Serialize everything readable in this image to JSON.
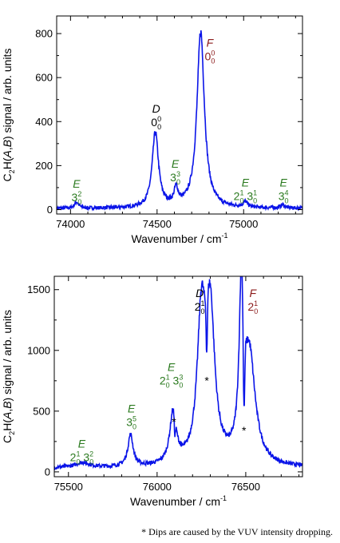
{
  "colors": {
    "trace": "#0a14e8",
    "E": "#2b7a1f",
    "D": "#000000",
    "F": "#8b1a1a"
  },
  "footnote": "* Dips are caused by the VUV intensity dropping.",
  "chart_data": [
    {
      "type": "line",
      "title": "",
      "xlabel_main": "Wavenumber / cm",
      "xlabel_sup": "-1",
      "ylabel_pre": "C",
      "ylabel_sub": "2",
      "ylabel_mid": "H(",
      "ylabel_A": "A",
      "ylabel_comma": ",",
      "ylabel_B": "B",
      "ylabel_post": ") signal / arb. units",
      "xlim": [
        73920,
        75340
      ],
      "ylim": [
        -20,
        880
      ],
      "xticks": [
        74000,
        74500,
        75000
      ],
      "yticks": [
        0,
        200,
        400,
        600,
        800
      ],
      "baseline": 5,
      "peaks": [
        {
          "x": 74035,
          "h": 28,
          "w": 14
        },
        {
          "x": 74490,
          "h": 340,
          "w": 22
        },
        {
          "x": 74610,
          "h": 75,
          "w": 14
        },
        {
          "x": 74752,
          "h": 800,
          "w": 26
        },
        {
          "x": 75010,
          "h": 25,
          "w": 16
        },
        {
          "x": 75225,
          "h": 15,
          "w": 14
        }
      ],
      "annotations": [
        {
          "x": 74035,
          "y": 100,
          "state": "E",
          "parts": [
            {
              "t": "3",
              "sup": "2",
              "sub": "0"
            }
          ]
        },
        {
          "x": 74495,
          "y": 440,
          "state": "D",
          "parts": [
            {
              "t": "0",
              "sup": "0",
              "sub": "0"
            }
          ]
        },
        {
          "x": 74605,
          "y": 190,
          "state": "E",
          "parts": [
            {
              "t": "3",
              "sup": "3",
              "sub": "0"
            }
          ]
        },
        {
          "x": 74805,
          "y": 740,
          "state": "F",
          "parts": [
            {
              "t": "0",
              "sup": "0",
              "sub": "0"
            }
          ]
        },
        {
          "x": 75010,
          "y": 105,
          "state": "E",
          "parts": [
            {
              "t": "2",
              "sup": "1",
              "sub": "0"
            },
            {
              "t": "3",
              "sup": "1",
              "sub": "0"
            }
          ]
        },
        {
          "x": 75230,
          "y": 105,
          "state": "E",
          "parts": [
            {
              "t": "3",
              "sup": "4",
              "sub": "0"
            }
          ]
        }
      ],
      "stars": []
    },
    {
      "type": "line",
      "title": "",
      "xlabel_main": "Wavenumber / cm",
      "xlabel_sup": "-1",
      "ylabel_pre": "C",
      "ylabel_sub": "2",
      "ylabel_mid": "H(",
      "ylabel_A": "A",
      "ylabel_comma": ",",
      "ylabel_B": "B",
      "ylabel_post": ") signal / arb. units",
      "xlim": [
        75420,
        76820
      ],
      "ylim": [
        -40,
        1610
      ],
      "xticks": [
        75500,
        76000,
        76500
      ],
      "yticks": [
        0,
        500,
        1000,
        1500
      ],
      "baseline": 30,
      "peaks": [
        {
          "x": 75580,
          "h": 40,
          "w": 50
        },
        {
          "x": 75850,
          "h": 260,
          "w": 18
        },
        {
          "x": 76090,
          "h": 420,
          "w": 22
        },
        {
          "x": 76250,
          "h": 1150,
          "w": 28
        },
        {
          "x": 76300,
          "h": 1200,
          "w": 30
        },
        {
          "x": 76475,
          "h": 1250,
          "w": 14
        },
        {
          "x": 76520,
          "h": 900,
          "w": 40
        }
      ],
      "dips": [
        {
          "x": 76100,
          "d": 150,
          "w": 5
        },
        {
          "x": 76280,
          "d": 450,
          "w": 5
        },
        {
          "x": 76490,
          "d": 700,
          "w": 6
        }
      ],
      "annotations": [
        {
          "x": 75575,
          "y": 200,
          "state": "E",
          "parts": [
            {
              "t": "2",
              "sup": "1",
              "sub": "0"
            },
            {
              "t": "3",
              "sup": "2",
              "sub": "0"
            }
          ]
        },
        {
          "x": 75855,
          "y": 490,
          "state": "E",
          "parts": [
            {
              "t": "3",
              "sup": "5",
              "sub": "0"
            }
          ]
        },
        {
          "x": 76080,
          "y": 830,
          "state": "E",
          "parts": [
            {
              "t": "2",
              "sup": "1",
              "sub": "0"
            },
            {
              "t": "3",
              "sup": "3",
              "sub": "0"
            }
          ]
        },
        {
          "x": 76240,
          "y": 1440,
          "state": "D",
          "parts": [
            {
              "t": "2",
              "sup": "1",
              "sub": "0"
            }
          ]
        },
        {
          "x": 76540,
          "y": 1440,
          "state": "F",
          "parts": [
            {
              "t": "2",
              "sup": "1",
              "sub": "0"
            }
          ]
        }
      ],
      "stars": [
        {
          "x": 76095,
          "y": 380,
          "t": "*"
        },
        {
          "x": 76280,
          "y": 720,
          "t": "*"
        },
        {
          "x": 76490,
          "y": 310,
          "t": "*"
        }
      ]
    }
  ]
}
